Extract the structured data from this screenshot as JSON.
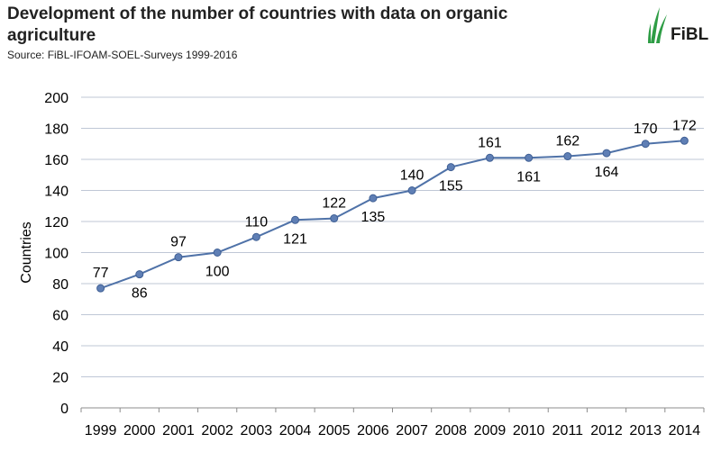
{
  "header": {
    "title": "Development of the number of countries with data on organic agriculture",
    "source": "Source: FiBL-IFOAM-SOEL-Surveys 1999-2016"
  },
  "logo": {
    "text": "FiBL",
    "icon": "fibl-leaf-icon",
    "color": "#2e9d45"
  },
  "chart_data": {
    "type": "line",
    "title": "Development of the number of countries with data on organic agriculture",
    "xlabel": "",
    "ylabel": "Countries",
    "x": [
      "1999",
      "2000",
      "2001",
      "2002",
      "2003",
      "2004",
      "2005",
      "2006",
      "2007",
      "2008",
      "2009",
      "2010",
      "2011",
      "2012",
      "2013",
      "2014"
    ],
    "series": [
      {
        "values": [
          77,
          86,
          97,
          100,
          110,
          121,
          122,
          135,
          140,
          155,
          161,
          161,
          162,
          164,
          170,
          172
        ]
      }
    ],
    "label_position": [
      "above",
      "below",
      "above",
      "below",
      "above",
      "below",
      "above",
      "below",
      "above",
      "below",
      "above",
      "below",
      "above",
      "below",
      "above",
      "above"
    ],
    "ylim": [
      0,
      200
    ],
    "yticks": [
      0,
      20,
      40,
      60,
      80,
      100,
      120,
      140,
      160,
      180,
      200
    ],
    "grid": true,
    "line_color": "#4f72a8",
    "marker_color": "#5f7fb5",
    "grid_color": "#bfc7d6"
  }
}
